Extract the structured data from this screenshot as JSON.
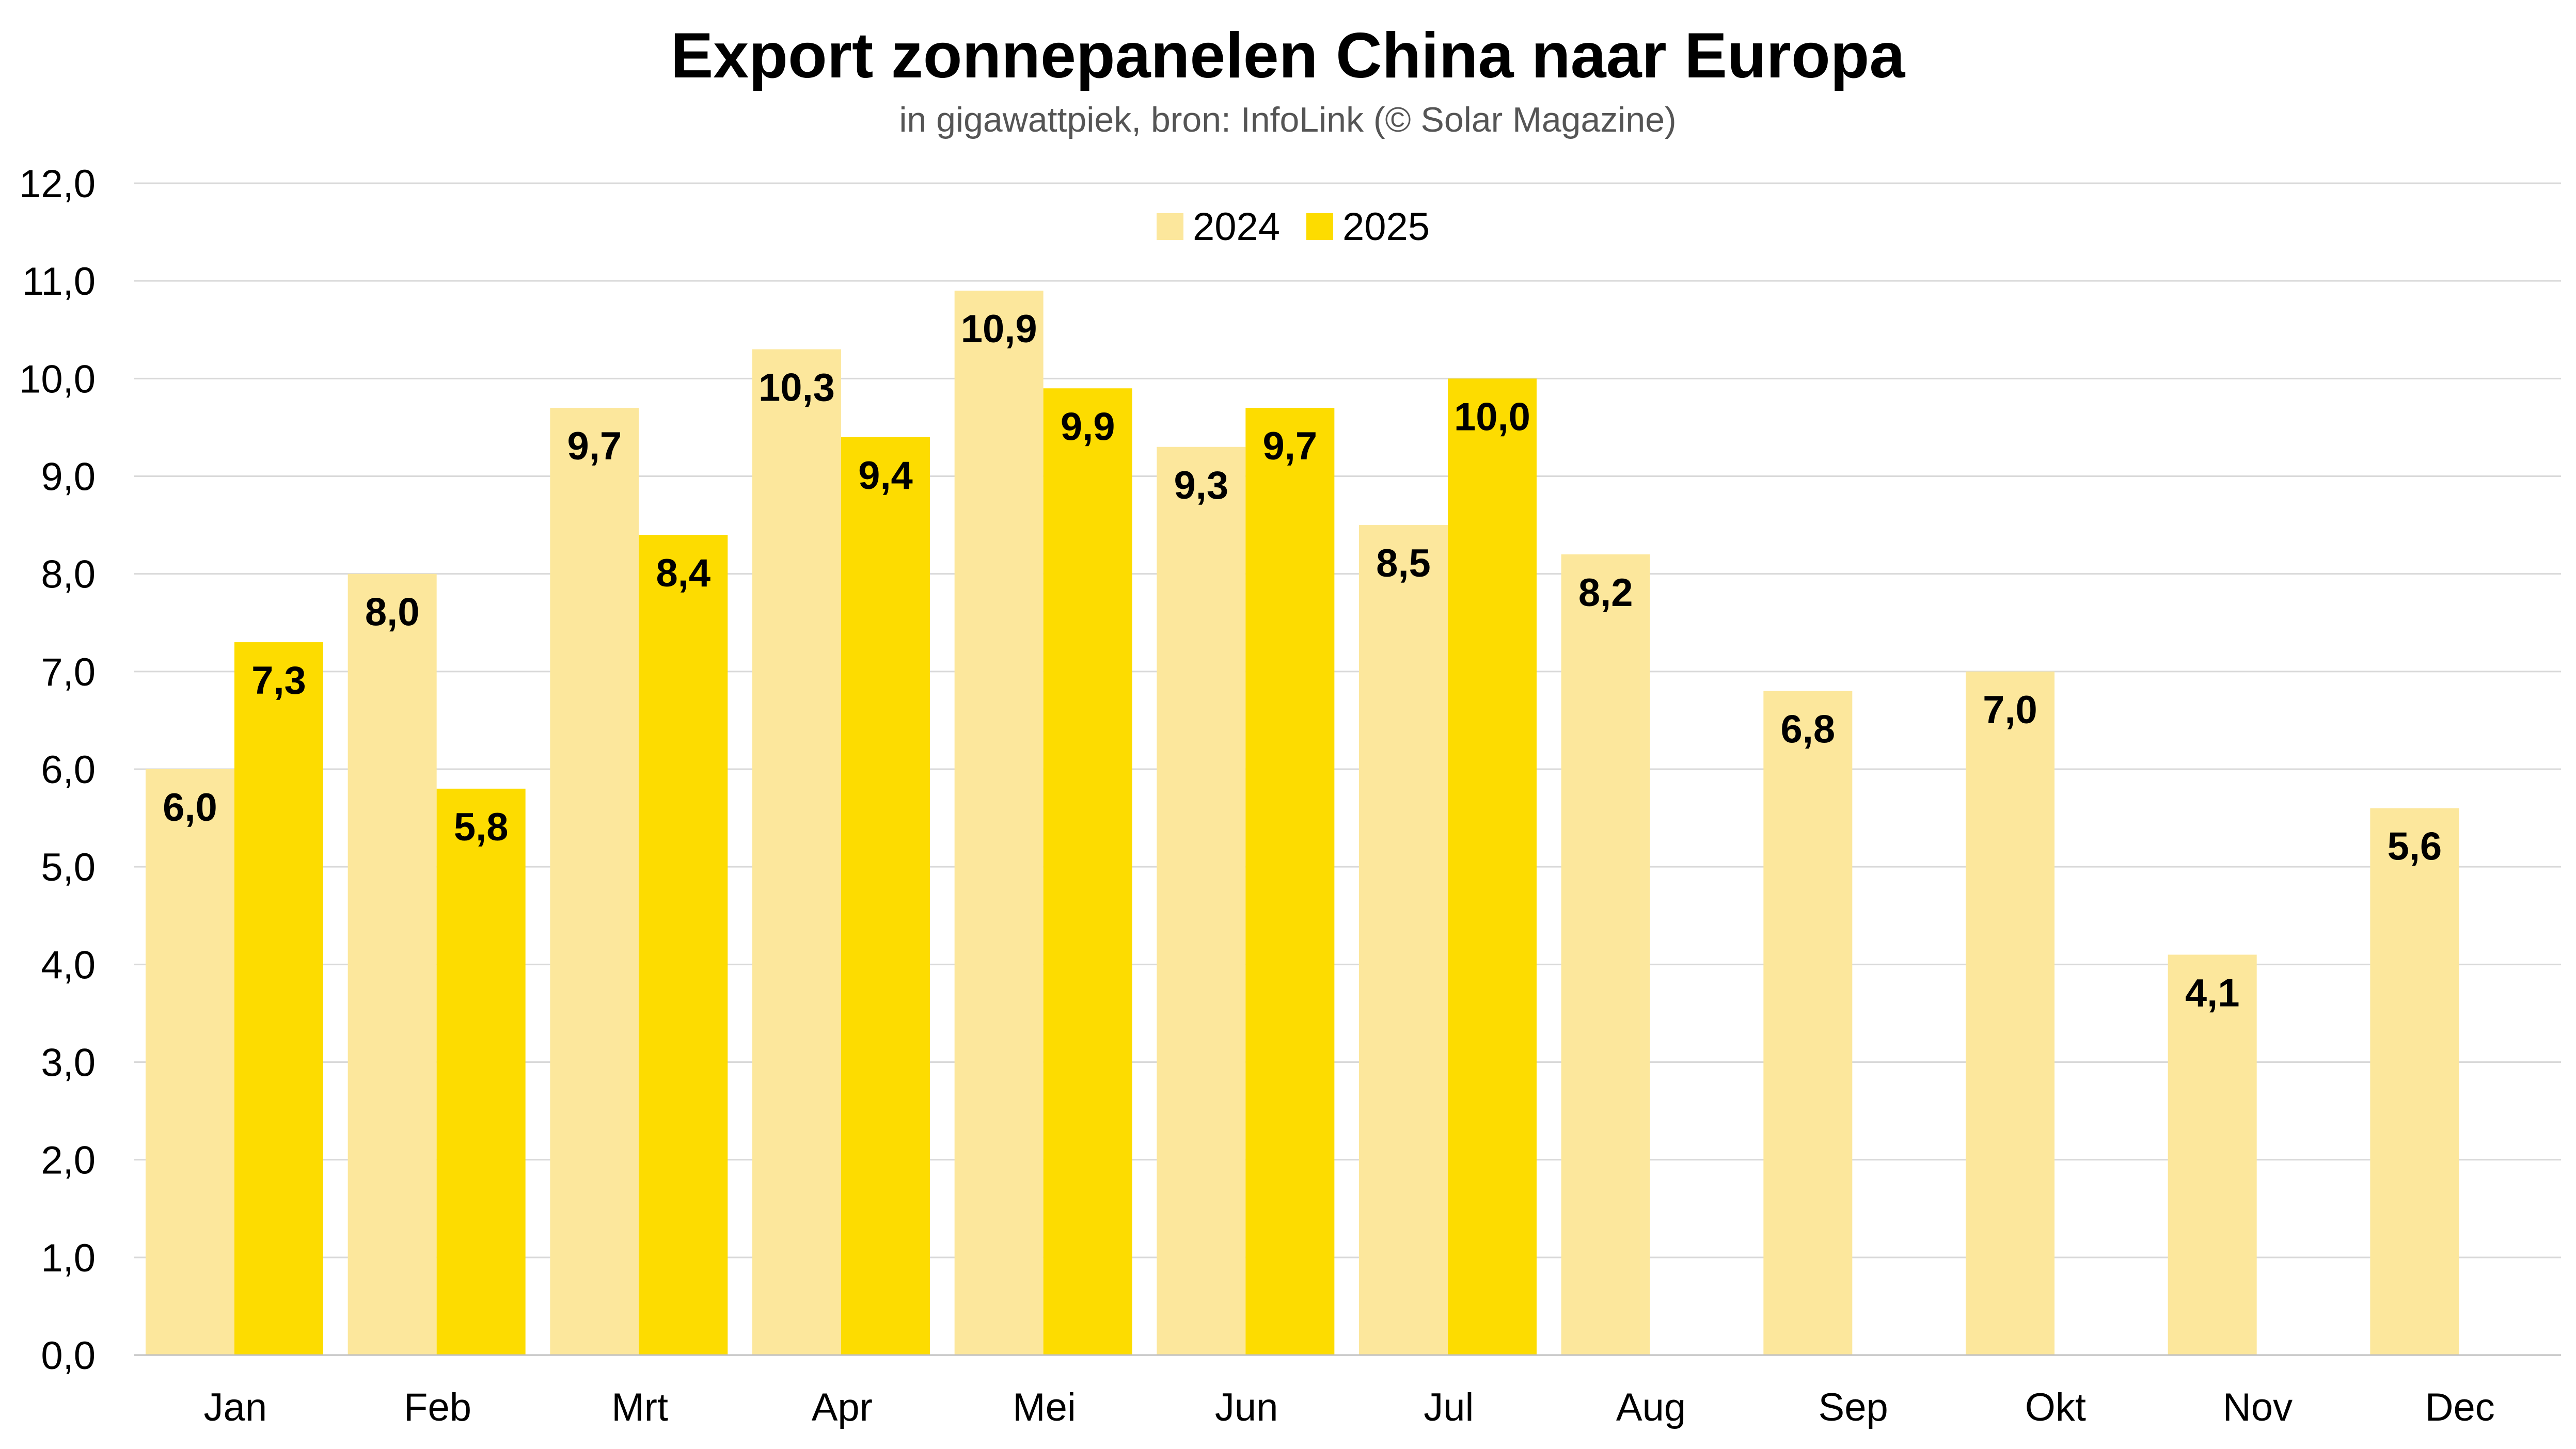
{
  "chart_data": {
    "type": "bar",
    "title": "Export zonnepanelen China naar Europa",
    "subtitle": "in gigawattpiek, bron: InfoLink (© Solar Magazine)",
    "categories": [
      "Jan",
      "Feb",
      "Mrt",
      "Apr",
      "Mei",
      "Jun",
      "Jul",
      "Aug",
      "Sep",
      "Okt",
      "Nov",
      "Dec"
    ],
    "series": [
      {
        "name": "2024",
        "color": "#FCE79C",
        "values": [
          6.0,
          8.0,
          9.7,
          10.3,
          10.9,
          9.3,
          8.5,
          8.2,
          6.8,
          7.0,
          4.1,
          5.6
        ],
        "labels": [
          "6,0",
          "8,0",
          "9,7",
          "10,3",
          "10,9",
          "9,3",
          "8,5",
          "8,2",
          "6,8",
          "7,0",
          "4,1",
          "5,6"
        ]
      },
      {
        "name": "2025",
        "color": "#FDDC00",
        "values": [
          7.3,
          5.8,
          8.4,
          9.4,
          9.9,
          9.7,
          10.0,
          null,
          null,
          null,
          null,
          null
        ],
        "labels": [
          "7,3",
          "5,8",
          "8,4",
          "9,4",
          "9,9",
          "9,7",
          "10,0",
          "",
          "",
          "",
          "",
          ""
        ]
      }
    ],
    "ylim": [
      0,
      12
    ],
    "yticks": [
      0,
      1,
      2,
      3,
      4,
      5,
      6,
      7,
      8,
      9,
      10,
      11,
      12
    ],
    "ytick_labels": [
      "0,0",
      "1,0",
      "2,0",
      "3,0",
      "4,0",
      "5,0",
      "6,0",
      "7,0",
      "8,0",
      "9,0",
      "10,0",
      "11,0",
      "12,0"
    ],
    "grid": true,
    "legend_position": "top-center",
    "xlabel": "",
    "ylabel": ""
  }
}
